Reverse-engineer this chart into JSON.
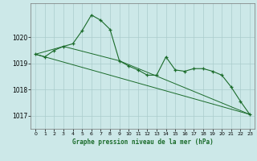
{
  "title": "Graphe pression niveau de la mer (hPa)",
  "xlim": [
    -0.5,
    23.5
  ],
  "ylim": [
    1016.5,
    1021.3
  ],
  "yticks": [
    1017,
    1018,
    1019,
    1020
  ],
  "xticks": [
    0,
    1,
    2,
    3,
    4,
    5,
    6,
    7,
    8,
    9,
    10,
    11,
    12,
    13,
    14,
    15,
    16,
    17,
    18,
    19,
    20,
    21,
    22,
    23
  ],
  "bg_color": "#cce8e8",
  "grid_color": "#aacccc",
  "line_color": "#1a6b2a",
  "series1": {
    "x": [
      0,
      1,
      2,
      3,
      4,
      5,
      6,
      7,
      8,
      9,
      10,
      11,
      12,
      13,
      14,
      15,
      16,
      17,
      18,
      19,
      20,
      21,
      22,
      23
    ],
    "y": [
      1019.35,
      1019.25,
      1019.5,
      1019.65,
      1019.75,
      1020.25,
      1020.85,
      1020.65,
      1020.3,
      1019.1,
      1018.9,
      1018.75,
      1018.55,
      1018.55,
      1019.25,
      1018.75,
      1018.7,
      1018.8,
      1018.8,
      1018.7,
      1018.55,
      1018.1,
      1017.55,
      1017.05
    ]
  },
  "series2": {
    "x": [
      0,
      3,
      9,
      23
    ],
    "y": [
      1019.35,
      1019.65,
      1019.1,
      1017.05
    ]
  },
  "series3": {
    "x": [
      0,
      23
    ],
    "y": [
      1019.35,
      1017.05
    ]
  },
  "figsize": [
    3.2,
    2.0
  ],
  "dpi": 100
}
